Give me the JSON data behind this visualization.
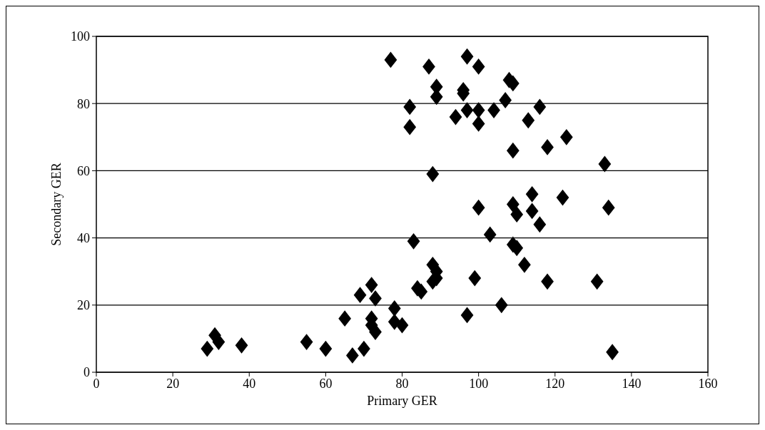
{
  "chart_data": {
    "type": "scatter",
    "xlabel": "Primary GER",
    "ylabel": "Secondary GER",
    "x": [
      29,
      31,
      32,
      38,
      55,
      60,
      65,
      67,
      69,
      70,
      72,
      72,
      72,
      73,
      73,
      77,
      78,
      78,
      80,
      82,
      82,
      83,
      84,
      85,
      87,
      88,
      88,
      88,
      89,
      89,
      89,
      89,
      94,
      96,
      96,
      97,
      97,
      97,
      99,
      100,
      100,
      100,
      100,
      103,
      104,
      106,
      107,
      108,
      109,
      109,
      109,
      109,
      110,
      110,
      112,
      113,
      114,
      114,
      116,
      116,
      118,
      118,
      122,
      123,
      131,
      133,
      134,
      135
    ],
    "series": [
      {
        "color": "#000000",
        "values": [
          7,
          11,
          9,
          8,
          9,
          7,
          16,
          5,
          23,
          7,
          26,
          16,
          14,
          22,
          12,
          93,
          19,
          15,
          14,
          79,
          73,
          39,
          25,
          24,
          91,
          59,
          32,
          27,
          85,
          82,
          30,
          28,
          76,
          84,
          83,
          94,
          78,
          17,
          28,
          91,
          78,
          74,
          49,
          41,
          78,
          20,
          81,
          87,
          86,
          66,
          50,
          38,
          47,
          37,
          32,
          75,
          53,
          48,
          79,
          44,
          67,
          27,
          52,
          70,
          27,
          62,
          49,
          6
        ]
      }
    ],
    "xlim": [
      0,
      160
    ],
    "xticks": [
      0,
      20,
      40,
      60,
      80,
      100,
      120,
      140,
      160
    ],
    "ylim": [
      0,
      100
    ],
    "yticks": [
      0,
      20,
      40,
      60,
      80,
      100
    ],
    "grid": "y",
    "marker": "diamond"
  }
}
